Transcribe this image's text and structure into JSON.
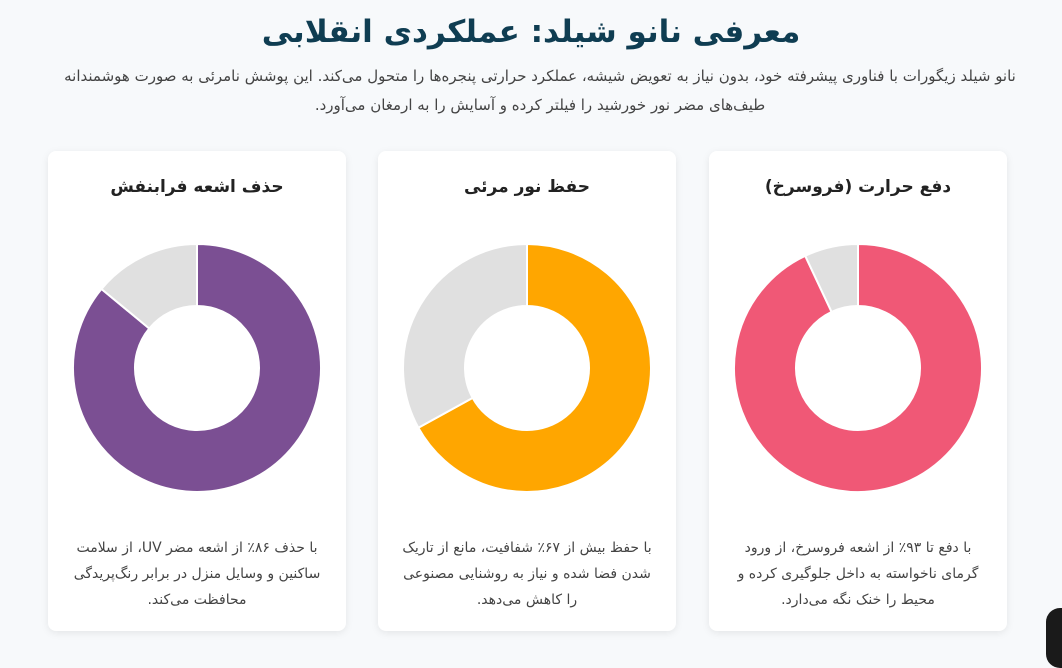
{
  "header": {
    "title": "معرفی نانو شیلد: عملکردی انقلابی",
    "intro": "نانو شیلد زیگورات با فناوری پیشرفته خود، بدون نیاز به تعویض شیشه، عملکرد حرارتی پنجره‌ها را متحول می‌کند. این پوشش نامرئی به صورت هوشمندانه طیف‌های مضر نور خورشید را فیلتر کرده و آسایش را به ارمغان می‌آورد."
  },
  "cards": [
    {
      "title": "دفع حرارت (فروسرخ)",
      "description": "با دفع تا ۹۳٪ از اشعه فروسرخ، از ورود گرمای ناخواسته به داخل جلوگیری کرده و محیط را خنک نگه می‌دارد.",
      "color": "#f05876"
    },
    {
      "title": "حفظ نور مرئی",
      "description": "با حفظ بیش از ۶۷٪ شفافیت، مانع از تاریک شدن فضا شده و نیاز به روشنایی مصنوعی را کاهش می‌دهد.",
      "color": "#ffa600"
    },
    {
      "title": "حذف اشعه فرابنفش",
      "description": "با حذف ۸۶٪ از اشعه مضر UV، از سلامت ساکنین و وسایل منزل در برابر رنگ‌پریدگی محافظت می‌کند.",
      "color": "#7b4f93"
    }
  ],
  "chart_data": [
    {
      "type": "pie",
      "variant": "doughnut",
      "title": "دفع حرارت (فروسرخ)",
      "values": [
        93,
        7
      ],
      "colors": [
        "#f05876",
        "#e0e0e0"
      ]
    },
    {
      "type": "pie",
      "variant": "doughnut",
      "title": "حفظ نور مرئی",
      "values": [
        67,
        33
      ],
      "colors": [
        "#ffa600",
        "#e0e0e0"
      ]
    },
    {
      "type": "pie",
      "variant": "doughnut",
      "title": "حذف اشعه فرابنفش",
      "values": [
        86,
        14
      ],
      "colors": [
        "#7b4f93",
        "#e0e0e0"
      ]
    }
  ]
}
